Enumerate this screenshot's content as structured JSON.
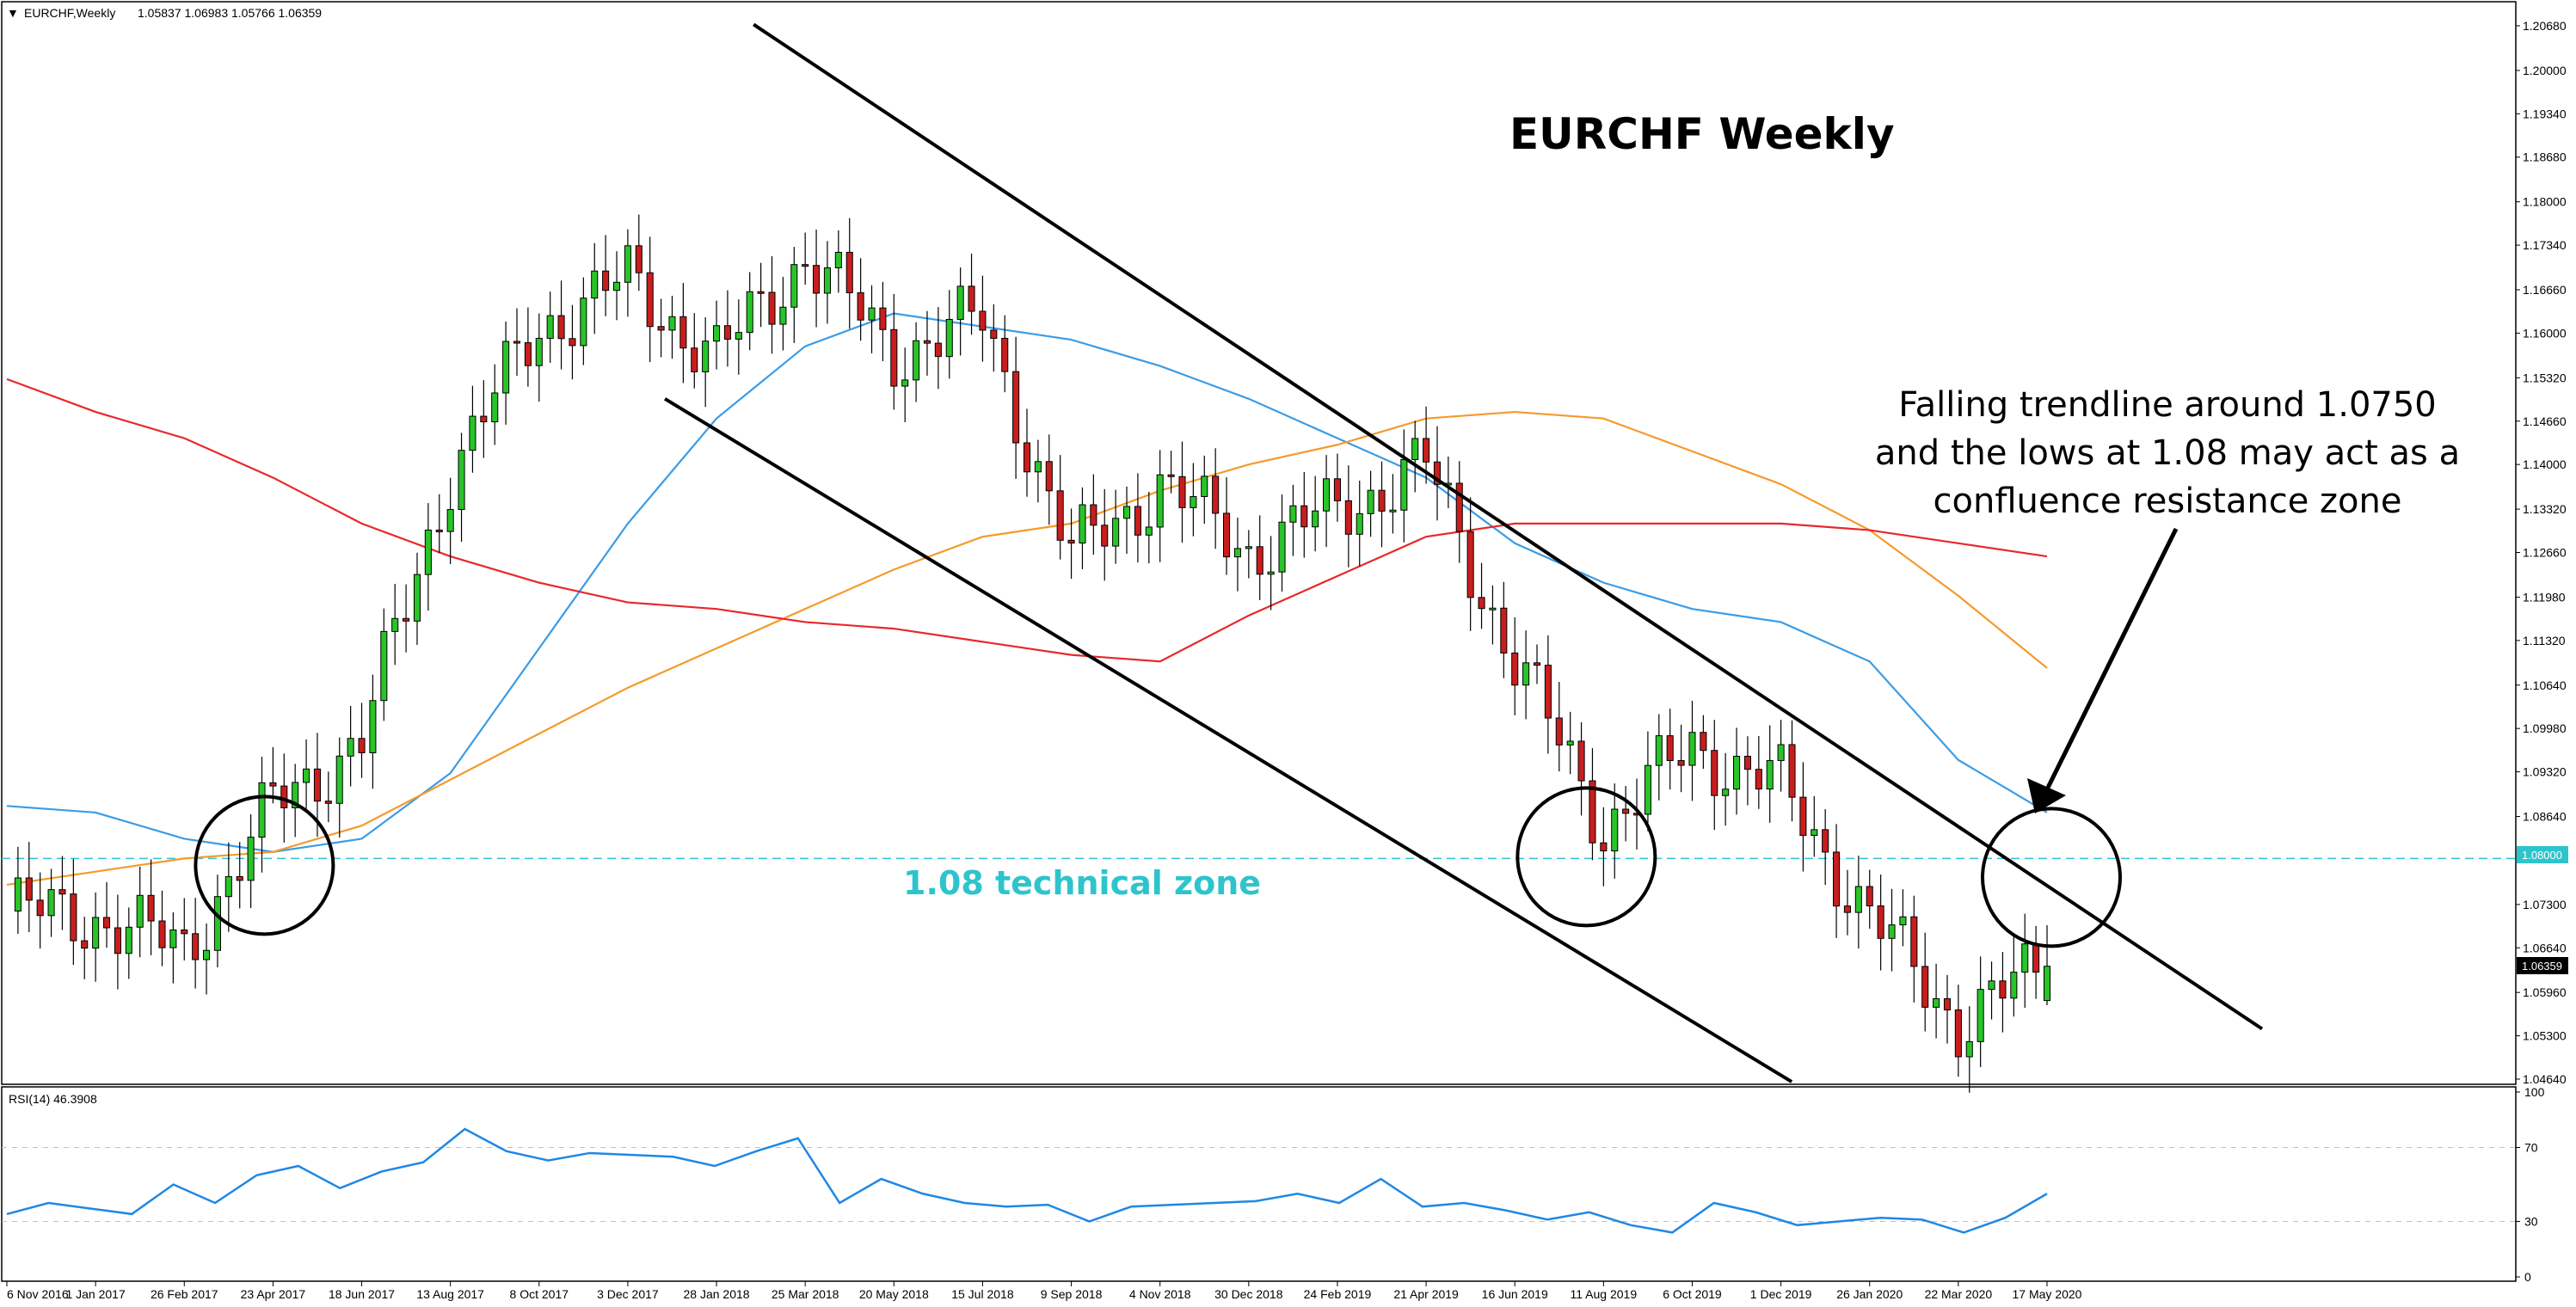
{
  "header": {
    "menu_glyph": "▼",
    "symbol": "EURCHF,Weekly",
    "ohlc": "1.05837 1.06983 1.05766 1.06359"
  },
  "annotations": {
    "title": "EURCHF Weekly",
    "zone_label": "1.08 technical zone",
    "note_lines": [
      "Falling trendline around 1.0750",
      "and the lows at 1.08 may act as a",
      "confluence resistance zone"
    ]
  },
  "price_axis": {
    "ticks": [
      "1.20680",
      "1.20000",
      "1.19340",
      "1.18680",
      "1.18000",
      "1.17340",
      "1.16660",
      "1.16000",
      "1.15320",
      "1.14660",
      "1.14000",
      "1.13320",
      "1.12660",
      "1.11980",
      "1.11320",
      "1.10640",
      "1.09980",
      "1.09320",
      "1.08640",
      "1.07300",
      "1.06640",
      "1.05960",
      "1.05300",
      "1.04640"
    ],
    "level_badge": "1.08000",
    "last_price_badge": "1.06359"
  },
  "time_axis": {
    "labels": [
      "6 Nov 2016",
      "1 Jan 2017",
      "26 Feb 2017",
      "23 Apr 2017",
      "18 Jun 2017",
      "13 Aug 2017",
      "8 Oct 2017",
      "3 Dec 2017",
      "28 Jan 2018",
      "25 Mar 2018",
      "20 May 2018",
      "15 Jul 2018",
      "9 Sep 2018",
      "4 Nov 2018",
      "30 Dec 2018",
      "24 Feb 2019",
      "21 Apr 2019",
      "16 Jun 2019",
      "11 Aug 2019",
      "6 Oct 2019",
      "1 Dec 2019",
      "26 Jan 2020",
      "22 Mar 2020",
      "17 May 2020"
    ]
  },
  "rsi_panel": {
    "label": "RSI(14) 46.3908",
    "ticks": [
      "100",
      "70",
      "30",
      "0"
    ]
  },
  "colors": {
    "bull": "#28c428",
    "bear": "#c81e1e",
    "ma_fast": "#3a9ce6",
    "ma_mid": "#f59a2b",
    "ma_slow": "#e8282a",
    "zone": "#2ec4cc",
    "rsi": "#1e88e5"
  },
  "chart_data": {
    "type": "candlestick",
    "symbol": "EURCHF",
    "timeframe": "Weekly",
    "ylim": [
      1.0464,
      1.2068
    ],
    "horizontal_level": 1.08,
    "last_close": 1.06359,
    "last_bar_ohlc": [
      1.05837,
      1.06983,
      1.05766,
      1.06359
    ],
    "approx_closes": [
      {
        "date": "6 Nov 2016",
        "close": 1.072
      },
      {
        "date": "1 Jan 2017",
        "close": 1.071
      },
      {
        "date": "26 Feb 2017",
        "close": 1.066
      },
      {
        "date": "23 Apr 2017",
        "close": 1.088
      },
      {
        "date": "18 Jun 2017",
        "close": 1.098
      },
      {
        "date": "13 Aug 2017",
        "close": 1.139
      },
      {
        "date": "8 Oct 2017",
        "close": 1.161
      },
      {
        "date": "3 Dec 2017",
        "close": 1.168
      },
      {
        "date": "28 Jan 2018",
        "close": 1.156
      },
      {
        "date": "25 Mar 2018",
        "close": 1.172
      },
      {
        "date": "20 May 2018",
        "close": 1.157
      },
      {
        "date": "15 Jul 2018",
        "close": 1.162
      },
      {
        "date": "9 Sep 2018",
        "close": 1.126
      },
      {
        "date": "4 Nov 2018",
        "close": 1.137
      },
      {
        "date": "30 Dec 2018",
        "close": 1.127
      },
      {
        "date": "24 Feb 2019",
        "close": 1.133
      },
      {
        "date": "21 Apr 2019",
        "close": 1.14
      },
      {
        "date": "16 Jun 2019",
        "close": 1.11
      },
      {
        "date": "11 Aug 2019",
        "close": 1.085
      },
      {
        "date": "6 Oct 2019",
        "close": 1.097
      },
      {
        "date": "1 Dec 2019",
        "close": 1.091
      },
      {
        "date": "26 Jan 2020",
        "close": 1.071
      },
      {
        "date": "22 Mar 2020",
        "close": 1.055
      },
      {
        "date": "17 May 2020",
        "close": 1.06359
      }
    ],
    "moving_averages": [
      {
        "color": "#3a9ce6",
        "approx_values": [
          1.088,
          1.087,
          1.083,
          1.081,
          1.083,
          1.093,
          1.112,
          1.131,
          1.147,
          1.158,
          1.163,
          1.161,
          1.159,
          1.155,
          1.15,
          1.144,
          1.138,
          1.128,
          1.122,
          1.118,
          1.116,
          1.11,
          1.095,
          1.087
        ]
      },
      {
        "color": "#f59a2b",
        "approx_values": [
          1.076,
          1.078,
          1.08,
          1.081,
          1.085,
          1.092,
          1.099,
          1.106,
          1.112,
          1.118,
          1.124,
          1.129,
          1.131,
          1.136,
          1.14,
          1.143,
          1.147,
          1.148,
          1.147,
          1.142,
          1.137,
          1.13,
          1.12,
          1.109
        ]
      },
      {
        "color": "#e8282a",
        "approx_values": [
          1.153,
          1.148,
          1.144,
          1.138,
          1.131,
          1.126,
          1.122,
          1.119,
          1.118,
          1.116,
          1.115,
          1.113,
          1.111,
          1.11,
          1.117,
          1.123,
          1.129,
          1.131,
          1.131,
          1.131,
          1.131,
          1.13,
          1.128,
          1.126
        ]
      }
    ],
    "trendlines": [
      {
        "name": "upper channel",
        "from": {
          "date": "25 Mar 2018",
          "price": 1.207
        },
        "to": {
          "date": "17 May 2020",
          "price": 1.0737
        }
      },
      {
        "name": "lower channel",
        "from": {
          "date": "28 Jan 2018",
          "price": 1.15
        },
        "to": {
          "date": "1 Dec 2019",
          "price": 1.046
        }
      }
    ],
    "rsi": {
      "period": 14,
      "last": 46.3908,
      "levels": [
        70,
        30
      ],
      "ylim": [
        0,
        100
      ],
      "approx_values": [
        34,
        40,
        37,
        34,
        50,
        40,
        55,
        60,
        48,
        57,
        62,
        80,
        68,
        63,
        67,
        66,
        65,
        60,
        68,
        75,
        40,
        53,
        45,
        40,
        38,
        39,
        30,
        38,
        39,
        40,
        41,
        45,
        40,
        53,
        38,
        40,
        36,
        31,
        35,
        28,
        24,
        40,
        35,
        28,
        30,
        32,
        31,
        24,
        32,
        45
      ]
    }
  }
}
